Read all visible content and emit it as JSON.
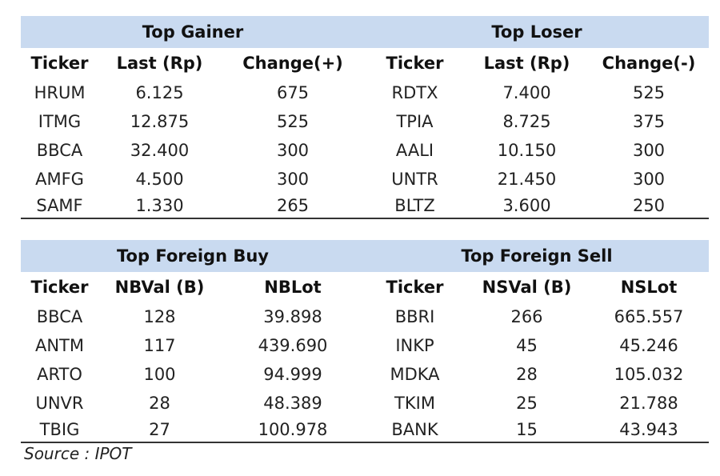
{
  "gainer_loser": {
    "left_title": "Top Gainer",
    "right_title": "Top Loser",
    "headers": [
      "Ticker",
      "Last (Rp)",
      "Change(+)",
      "Ticker",
      "Last (Rp)",
      "Change(-)"
    ],
    "rows": [
      [
        "HRUM",
        "6.125",
        "675",
        "RDTX",
        "7.400",
        "525"
      ],
      [
        "ITMG",
        "12.875",
        "525",
        "TPIA",
        "8.725",
        "375"
      ],
      [
        "BBCA",
        "32.400",
        "300",
        "AALI",
        "10.150",
        "300"
      ],
      [
        "AMFG",
        "4.500",
        "300",
        "UNTR",
        "21.450",
        "300"
      ],
      [
        "SAMF",
        "1.330",
        "265",
        "BLTZ",
        "3.600",
        "250"
      ]
    ]
  },
  "foreign": {
    "left_title": "Top Foreign Buy",
    "right_title": "Top Foreign Sell",
    "headers": [
      "Ticker",
      "NBVal (B)",
      "NBLot",
      "Ticker",
      "NSVal (B)",
      "NSLot"
    ],
    "rows": [
      [
        "BBCA",
        "128",
        "39.898",
        "BBRI",
        "266",
        "665.557"
      ],
      [
        "ANTM",
        "117",
        "439.690",
        "INKP",
        "45",
        "45.246"
      ],
      [
        "ARTO",
        "100",
        "94.999",
        "MDKA",
        "28",
        "105.032"
      ],
      [
        "UNVR",
        "28",
        "48.389",
        "TKIM",
        "25",
        "21.788"
      ],
      [
        "TBIG",
        "27",
        "100.978",
        "BANK",
        "15",
        "43.943"
      ]
    ]
  },
  "source": "Source : IPOT"
}
